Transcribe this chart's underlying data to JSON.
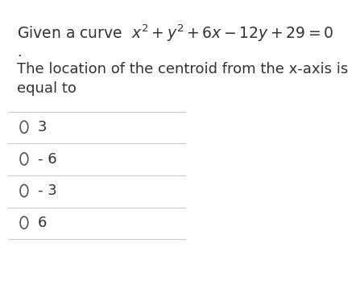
{
  "title_line": "Given a curve  $x^2 + y^2 + 6x - 12y + 29 = 0$",
  "subtitle_dot": ".",
  "question_line1": "The location of the centroid from the x-axis is",
  "question_line2": "equal to",
  "choices": [
    "3",
    "- 6",
    "- 3",
    "6"
  ],
  "bg_color": "#ffffff",
  "text_color": "#333333",
  "line_color": "#cccccc",
  "circle_color": "#555555",
  "title_fontsize": 13.5,
  "body_fontsize": 13.0,
  "choice_fontsize": 13.0
}
